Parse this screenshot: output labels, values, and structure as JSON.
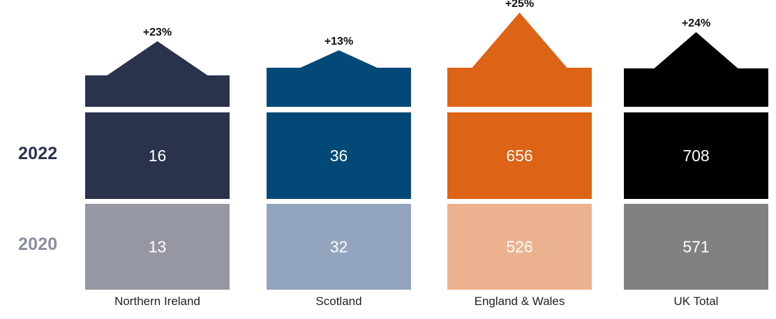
{
  "chart_data": {
    "type": "table",
    "rows": [
      "2022",
      "2020"
    ],
    "row_label_colors": [
      "#2b3250",
      "#8a8f9c"
    ],
    "categories": [
      "Northern Ireland",
      "Scotland",
      "England & Wales",
      "UK Total"
    ],
    "series": [
      {
        "name": "2022",
        "values": [
          16,
          36,
          656,
          708
        ]
      },
      {
        "name": "2020",
        "values": [
          13,
          32,
          526,
          571
        ]
      }
    ],
    "change_labels": [
      "+23%",
      "+13%",
      "+25%",
      "+24%"
    ],
    "colors_2022": [
      "#2b324c",
      "#034977",
      "#dd6416",
      "#000000"
    ],
    "colors_2020": [
      "#9598a2",
      "#93a4bf",
      "#ecb28f",
      "#818181"
    ]
  }
}
